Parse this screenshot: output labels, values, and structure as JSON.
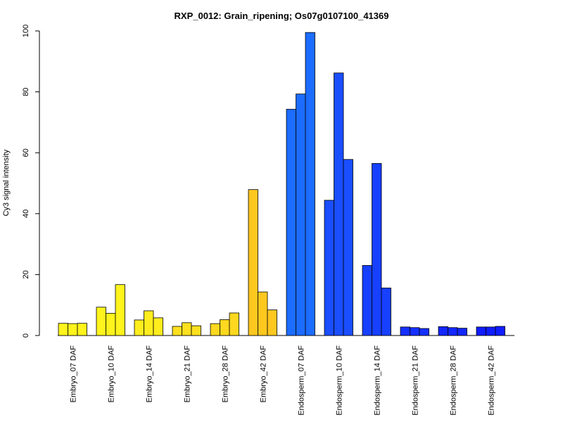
{
  "chart_data": {
    "type": "bar",
    "title": "RXP_0012: Grain_ripening; Os07g0107100_41369",
    "xlabel": "",
    "ylabel": "Cy3 signal intensity",
    "ylim": [
      0,
      100
    ],
    "yticks": [
      0,
      20,
      40,
      60,
      80,
      100
    ],
    "grid": false,
    "groups": [
      {
        "label": "Embryo_07 DAF",
        "color": "#FFF41C",
        "values": [
          4.0,
          3.9,
          4.0
        ]
      },
      {
        "label": "Embryo_10 DAF",
        "color": "#FFF41C",
        "values": [
          9.3,
          7.3,
          16.7
        ]
      },
      {
        "label": "Embryo_14 DAF",
        "color": "#FFED1E",
        "values": [
          5.1,
          8.1,
          5.8
        ]
      },
      {
        "label": "Embryo_21 DAF",
        "color": "#FFE01F",
        "values": [
          3.0,
          4.2,
          3.2
        ]
      },
      {
        "label": "Embryo_28 DAF",
        "color": "#FFD81F",
        "values": [
          3.9,
          5.2,
          7.4
        ]
      },
      {
        "label": "Embryo_42 DAF",
        "color": "#FFC81F",
        "values": [
          47.9,
          14.3,
          8.4
        ]
      },
      {
        "label": "Endosperm_07 DAF",
        "color": "#1C6CFF",
        "values": [
          74.3,
          79.3,
          99.5
        ]
      },
      {
        "label": "Endosperm_10 DAF",
        "color": "#1A4EFF",
        "values": [
          44.4,
          86.2,
          57.8
        ]
      },
      {
        "label": "Endosperm_14 DAF",
        "color": "#1740FF",
        "values": [
          23.0,
          56.5,
          15.6
        ]
      },
      {
        "label": "Endosperm_21 DAF",
        "color": "#1530FF",
        "values": [
          2.8,
          2.6,
          2.3
        ]
      },
      {
        "label": "Endosperm_28 DAF",
        "color": "#1327FF",
        "values": [
          2.9,
          2.6,
          2.4
        ]
      },
      {
        "label": "Endosperm_42 DAF",
        "color": "#0F1CFF",
        "values": [
          2.8,
          2.8,
          3.0
        ]
      }
    ]
  }
}
